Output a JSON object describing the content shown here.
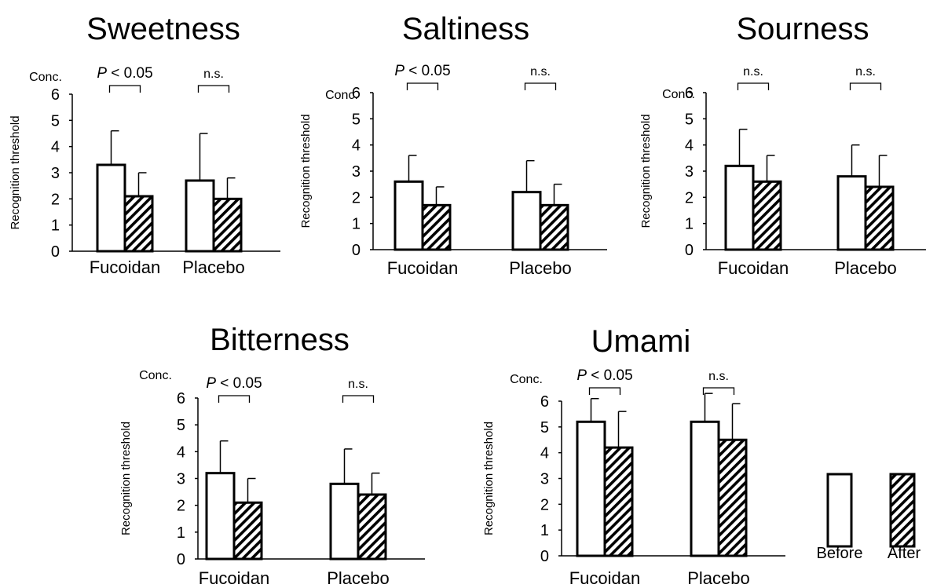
{
  "legend": {
    "before_label": "Before",
    "after_label": "After"
  },
  "chart_data": [
    {
      "type": "bar",
      "title": "Sweetness",
      "unit_label": "Conc.",
      "ylabel": "Recognition threshold",
      "ylim": [
        0,
        6
      ],
      "yticks": [
        "0",
        "1",
        "2",
        "3",
        "4",
        "5",
        "6"
      ],
      "categories": [
        "Fucoidan",
        "Placebo"
      ],
      "series": [
        {
          "name": "Before",
          "values": [
            3.3,
            2.7
          ],
          "errors": [
            1.3,
            1.8
          ]
        },
        {
          "name": "After",
          "values": [
            2.1,
            2.0
          ],
          "errors": [
            0.9,
            0.8
          ]
        }
      ],
      "significance": [
        {
          "prefix": "P",
          "label": " < 0.05"
        },
        {
          "prefix": "",
          "label": "n.s."
        }
      ]
    },
    {
      "type": "bar",
      "title": "Saltiness",
      "unit_label": "Conc.",
      "ylabel": "Recognition threshold",
      "ylim": [
        0,
        6
      ],
      "yticks": [
        "0",
        "1",
        "2",
        "3",
        "4",
        "5",
        "6"
      ],
      "categories": [
        "Fucoidan",
        "Placebo"
      ],
      "series": [
        {
          "name": "Before",
          "values": [
            2.6,
            2.2
          ],
          "errors": [
            1.0,
            1.2
          ]
        },
        {
          "name": "After",
          "values": [
            1.7,
            1.7
          ],
          "errors": [
            0.7,
            0.8
          ]
        }
      ],
      "significance": [
        {
          "prefix": "P",
          "label": " < 0.05"
        },
        {
          "prefix": "",
          "label": "n.s."
        }
      ]
    },
    {
      "type": "bar",
      "title": "Sourness",
      "unit_label": "Conc.",
      "ylabel": "Recognition threshold",
      "ylim": [
        0,
        6
      ],
      "yticks": [
        "0",
        "1",
        "2",
        "3",
        "4",
        "5",
        "6"
      ],
      "categories": [
        "Fucoidan",
        "Placebo"
      ],
      "series": [
        {
          "name": "Before",
          "values": [
            3.2,
            2.8
          ],
          "errors": [
            1.4,
            1.2
          ]
        },
        {
          "name": "After",
          "values": [
            2.6,
            2.4
          ],
          "errors": [
            1.0,
            1.2
          ]
        }
      ],
      "significance": [
        {
          "prefix": "",
          "label": "n.s."
        },
        {
          "prefix": "",
          "label": "n.s."
        }
      ]
    },
    {
      "type": "bar",
      "title": "Bitterness",
      "unit_label": "Conc.",
      "ylabel": "Recognition threshold",
      "ylim": [
        0,
        6
      ],
      "yticks": [
        "0",
        "1",
        "2",
        "3",
        "4",
        "5",
        "6"
      ],
      "categories": [
        "Fucoidan",
        "Placebo"
      ],
      "series": [
        {
          "name": "Before",
          "values": [
            3.2,
            2.8
          ],
          "errors": [
            1.2,
            1.3
          ]
        },
        {
          "name": "After",
          "values": [
            2.1,
            2.4
          ],
          "errors": [
            0.9,
            0.8
          ]
        }
      ],
      "significance": [
        {
          "prefix": "P",
          "label": " < 0.05"
        },
        {
          "prefix": "",
          "label": "n.s."
        }
      ]
    },
    {
      "type": "bar",
      "title": "Umami",
      "unit_label": "Conc.",
      "ylabel": "Recognition threshold",
      "ylim": [
        0,
        6
      ],
      "yticks": [
        "0",
        "1",
        "2",
        "3",
        "4",
        "5",
        "6"
      ],
      "categories": [
        "Fucoidan",
        "Placebo"
      ],
      "series": [
        {
          "name": "Before",
          "values": [
            5.2,
            5.2
          ],
          "errors": [
            0.9,
            1.1
          ]
        },
        {
          "name": "After",
          "values": [
            4.2,
            4.5
          ],
          "errors": [
            1.4,
            1.4
          ]
        }
      ],
      "significance": [
        {
          "prefix": "P",
          "label": " < 0.05"
        },
        {
          "prefix": "",
          "label": "n.s."
        }
      ]
    }
  ]
}
